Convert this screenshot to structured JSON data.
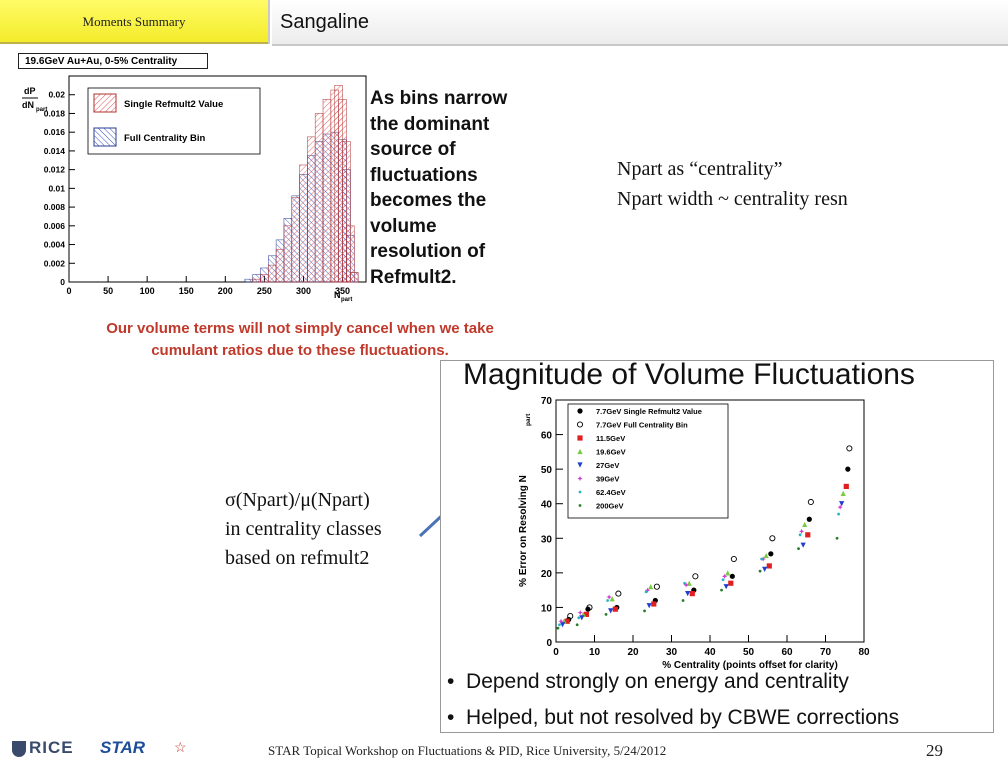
{
  "header": {
    "section_tab": "Moments Summary",
    "title": "Sangaline"
  },
  "left_figure": {
    "box_label": "19.6GeV Au+Au, 0-5% Centrality",
    "y_label_top": "dP",
    "y_label_bottom": "dN",
    "y_label_sub": "part",
    "x_label": "N",
    "x_label_sub": "part",
    "y_ticks": [
      "0",
      "0.002",
      "0.004",
      "0.006",
      "0.008",
      "0.01",
      "0.012",
      "0.014",
      "0.016",
      "0.018",
      "0.02"
    ],
    "x_ticks": [
      "0",
      "50",
      "100",
      "150",
      "200",
      "250",
      "300",
      "350"
    ],
    "legend": [
      "Single Refmult2 Value",
      "Full Centrality Bin"
    ]
  },
  "bold_paragraph": [
    "As bins narrow",
    "the dominant",
    "source of",
    "fluctuations",
    "becomes the",
    "volume",
    "resolution of",
    "Refmult2."
  ],
  "npart_note": [
    "Npart as “centrality”",
    "Npart width ~ centrality resn"
  ],
  "red_note": [
    "Our volume terms will not simply cancel when we take",
    "cumulant ratios due to these fluctuations."
  ],
  "sigma_note": [
    "σ(Npart)/μ(Npart)",
    "in centrality classes",
    "based on refmult2"
  ],
  "plot": {
    "title": "Magnitude of Volume Fluctuations",
    "ylabel": "% Error on Resolving N",
    "ylabel_sub": "part",
    "xlabel": "% Centrality (points offset for clarity)",
    "y_ticks": [
      "0",
      "10",
      "20",
      "30",
      "40",
      "50",
      "60",
      "70"
    ],
    "x_ticks": [
      "0",
      "10",
      "20",
      "30",
      "40",
      "50",
      "60",
      "70",
      "80"
    ],
    "legend": [
      {
        "name": "7.7GeV Single Refmult2 Value",
        "color": "#000000",
        "marker": "filled-circle"
      },
      {
        "name": "7.7GeV Full Centrality Bin",
        "color": "#000000",
        "marker": "open-circle"
      },
      {
        "name": "11.5GeV",
        "color": "#e02020",
        "marker": "filled-square"
      },
      {
        "name": "19.6GeV",
        "color": "#7ac943",
        "marker": "triangle"
      },
      {
        "name": "27GeV",
        "color": "#1f3fd0",
        "marker": "triangle-down"
      },
      {
        "name": "39GeV",
        "color": "#d23bd6",
        "marker": "star"
      },
      {
        "name": "62.4GeV",
        "color": "#2bb3c8",
        "marker": "dot"
      },
      {
        "name": "200GeV",
        "color": "#2a7d2a",
        "marker": "dot"
      }
    ]
  },
  "bullets": [
    "Depend strongly on energy and centrality",
    "Helped, but not resolved by CBWE  corrections"
  ],
  "footer": {
    "text": "STAR Topical Workshop on Fluctuations & PID, Rice University, 5/24/2012",
    "page": "29",
    "rice": "RICE",
    "star": "STAR"
  },
  "chart_data": [
    {
      "type": "bar",
      "title": "19.6GeV Au+Au, 0-5% Centrality",
      "xlabel": "N_part",
      "ylabel": "dP/dN_part",
      "xlim": [
        0,
        380
      ],
      "ylim": [
        0,
        0.022
      ],
      "series": [
        {
          "name": "Single Refmult2 Value",
          "x": [
            240,
            250,
            260,
            270,
            280,
            290,
            300,
            310,
            320,
            330,
            340,
            345,
            350,
            355,
            360,
            365
          ],
          "values": [
            0.0003,
            0.0008,
            0.0018,
            0.0035,
            0.006,
            0.009,
            0.0125,
            0.0155,
            0.018,
            0.0195,
            0.0205,
            0.021,
            0.0195,
            0.015,
            0.006,
            0.001
          ]
        },
        {
          "name": "Full Centrality Bin",
          "x": [
            230,
            240,
            250,
            260,
            270,
            280,
            290,
            300,
            310,
            320,
            330,
            340,
            350,
            355,
            360,
            365
          ],
          "values": [
            0.0003,
            0.0008,
            0.0015,
            0.0028,
            0.0045,
            0.0068,
            0.0092,
            0.0115,
            0.0135,
            0.015,
            0.0158,
            0.016,
            0.0152,
            0.012,
            0.005,
            0.001
          ]
        }
      ]
    },
    {
      "type": "scatter",
      "title": "Magnitude of Volume Fluctuations",
      "xlabel": "% Centrality (points offset for clarity)",
      "ylabel": "% Error on Resolving N_part",
      "xlim": [
        0,
        80
      ],
      "ylim": [
        0,
        70
      ],
      "x": [
        2.5,
        7.5,
        15,
        25,
        35,
        45,
        55,
        65,
        75
      ],
      "series": [
        {
          "name": "7.7GeV Single Refmult2 Value",
          "values": [
            6.5,
            9.5,
            10,
            12,
            15,
            19,
            25.5,
            35.5,
            50
          ]
        },
        {
          "name": "7.7GeV Full Centrality Bin",
          "values": [
            7.5,
            10,
            14,
            16,
            19,
            24,
            30,
            40.5,
            56
          ]
        },
        {
          "name": "11.5GeV",
          "values": [
            6,
            8,
            9.5,
            11,
            14,
            17,
            22,
            31,
            45
          ]
        },
        {
          "name": "19.6GeV",
          "values": [
            6,
            8,
            12.5,
            16,
            17,
            20,
            25,
            34,
            43
          ]
        },
        {
          "name": "27GeV",
          "values": [
            5,
            7,
            9,
            10.5,
            14,
            16,
            21,
            28,
            40
          ]
        },
        {
          "name": "39GeV",
          "values": [
            6,
            8.5,
            13,
            15,
            16.5,
            19,
            24,
            32,
            39
          ]
        },
        {
          "name": "62.4GeV",
          "values": [
            5,
            7,
            12,
            14.5,
            17,
            18,
            24,
            31,
            37
          ]
        },
        {
          "name": "200GeV",
          "values": [
            4,
            5,
            8,
            9,
            12,
            15,
            20.5,
            27,
            30
          ]
        }
      ]
    }
  ]
}
